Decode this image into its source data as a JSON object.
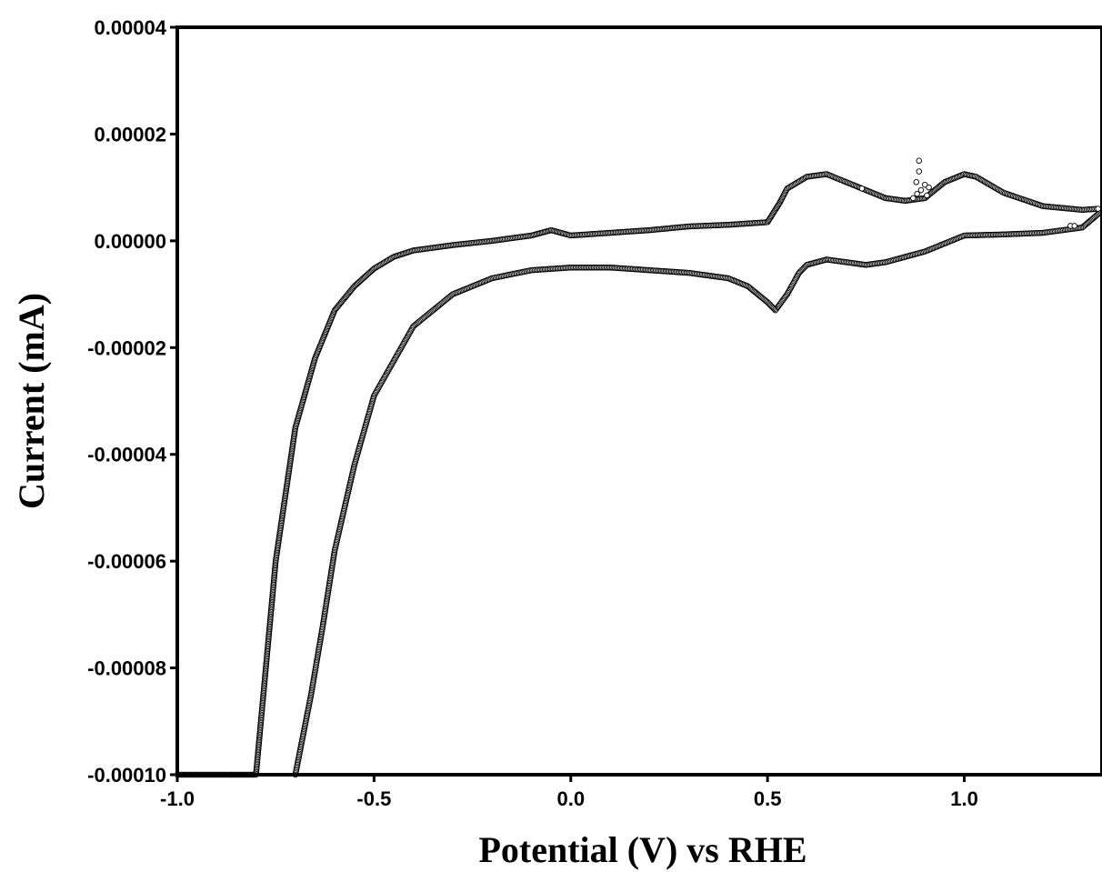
{
  "chart_data": {
    "type": "scatter",
    "title": "",
    "xlabel": "Potential (V) vs RHE",
    "ylabel": "Current (mA)",
    "xlim": [
      -1.0,
      1.35
    ],
    "ylim": [
      -0.0001,
      4e-05
    ],
    "xticks": [
      "-1.0",
      "-0.5",
      "0.0",
      "0.5",
      "1.0"
    ],
    "yticks": [
      "0.00004",
      "0.00002",
      "0.00000",
      "-0.00002",
      "-0.00004",
      "-0.00006",
      "-0.00008",
      "-0.00010"
    ],
    "grid": false,
    "legend": "none",
    "marker": "open circle",
    "colors": {
      "marker": "#000000",
      "axes": "#000000"
    },
    "series": [
      {
        "x": [
          -1.0,
          -0.8,
          -0.75,
          -0.7,
          -0.65,
          -0.6,
          -0.55,
          -0.5,
          -0.45,
          -0.4,
          -0.3,
          -0.2,
          -0.1,
          -0.05,
          0.0,
          0.1,
          0.2,
          0.3,
          0.4,
          0.5,
          0.53,
          0.55,
          0.6,
          0.65,
          0.7,
          0.75,
          0.8,
          0.85,
          0.9,
          0.95,
          1.0,
          1.03,
          1.1,
          1.2,
          1.3,
          1.34
        ],
        "y": [
          -0.0001,
          -0.0001,
          -6e-05,
          -3.5e-05,
          -2.2e-05,
          -1.3e-05,
          -8.5e-06,
          -5.2e-06,
          -3e-06,
          -1.8e-06,
          -8e-07,
          0.0,
          1e-06,
          2e-06,
          1e-06,
          1.5e-06,
          2e-06,
          2.7e-06,
          3e-06,
          3.5e-06,
          7e-06,
          9.8e-06,
          1.2e-05,
          1.25e-05,
          1.1e-05,
          9.5e-06,
          8e-06,
          7.5e-06,
          8e-06,
          1.1e-05,
          1.25e-05,
          1.2e-05,
          9e-06,
          6.5e-06,
          5.8e-06,
          6e-06
        ]
      },
      {
        "x": [
          1.34,
          1.3,
          1.2,
          1.1,
          1.0,
          0.9,
          0.8,
          0.75,
          0.7,
          0.65,
          0.6,
          0.58,
          0.55,
          0.52,
          0.5,
          0.45,
          0.4,
          0.3,
          0.2,
          0.1,
          0.0,
          -0.1,
          -0.2,
          -0.3,
          -0.4,
          -0.5,
          -0.55,
          -0.6,
          -0.63,
          -0.66,
          -0.7
        ],
        "y": [
          5e-06,
          2.5e-06,
          1.5e-06,
          1.2e-06,
          1e-06,
          -2e-06,
          -4e-06,
          -4.5e-06,
          -4e-06,
          -3.5e-06,
          -4.5e-06,
          -6e-06,
          -1e-05,
          -1.3e-05,
          -1.15e-05,
          -8.5e-06,
          -7e-06,
          -6e-06,
          -5.5e-06,
          -5e-06,
          -5e-06,
          -5.5e-06,
          -7e-06,
          -1e-05,
          -1.6e-05,
          -2.9e-05,
          -4.2e-05,
          -5.8e-05,
          -7.2e-05,
          -8.5e-05,
          -0.0001
        ]
      },
      {
        "x": [
          0.885,
          0.885,
          0.878,
          0.9,
          0.89,
          0.91,
          0.905,
          0.88,
          0.87,
          1.27,
          1.28,
          0.74
        ],
        "y": [
          1.5e-05,
          1.3e-05,
          1.1e-05,
          1.05e-05,
          9.5e-06,
          1e-05,
          8.5e-06,
          8.8e-06,
          8e-06,
          2.8e-06,
          2.8e-06,
          9.8e-06
        ]
      }
    ]
  }
}
